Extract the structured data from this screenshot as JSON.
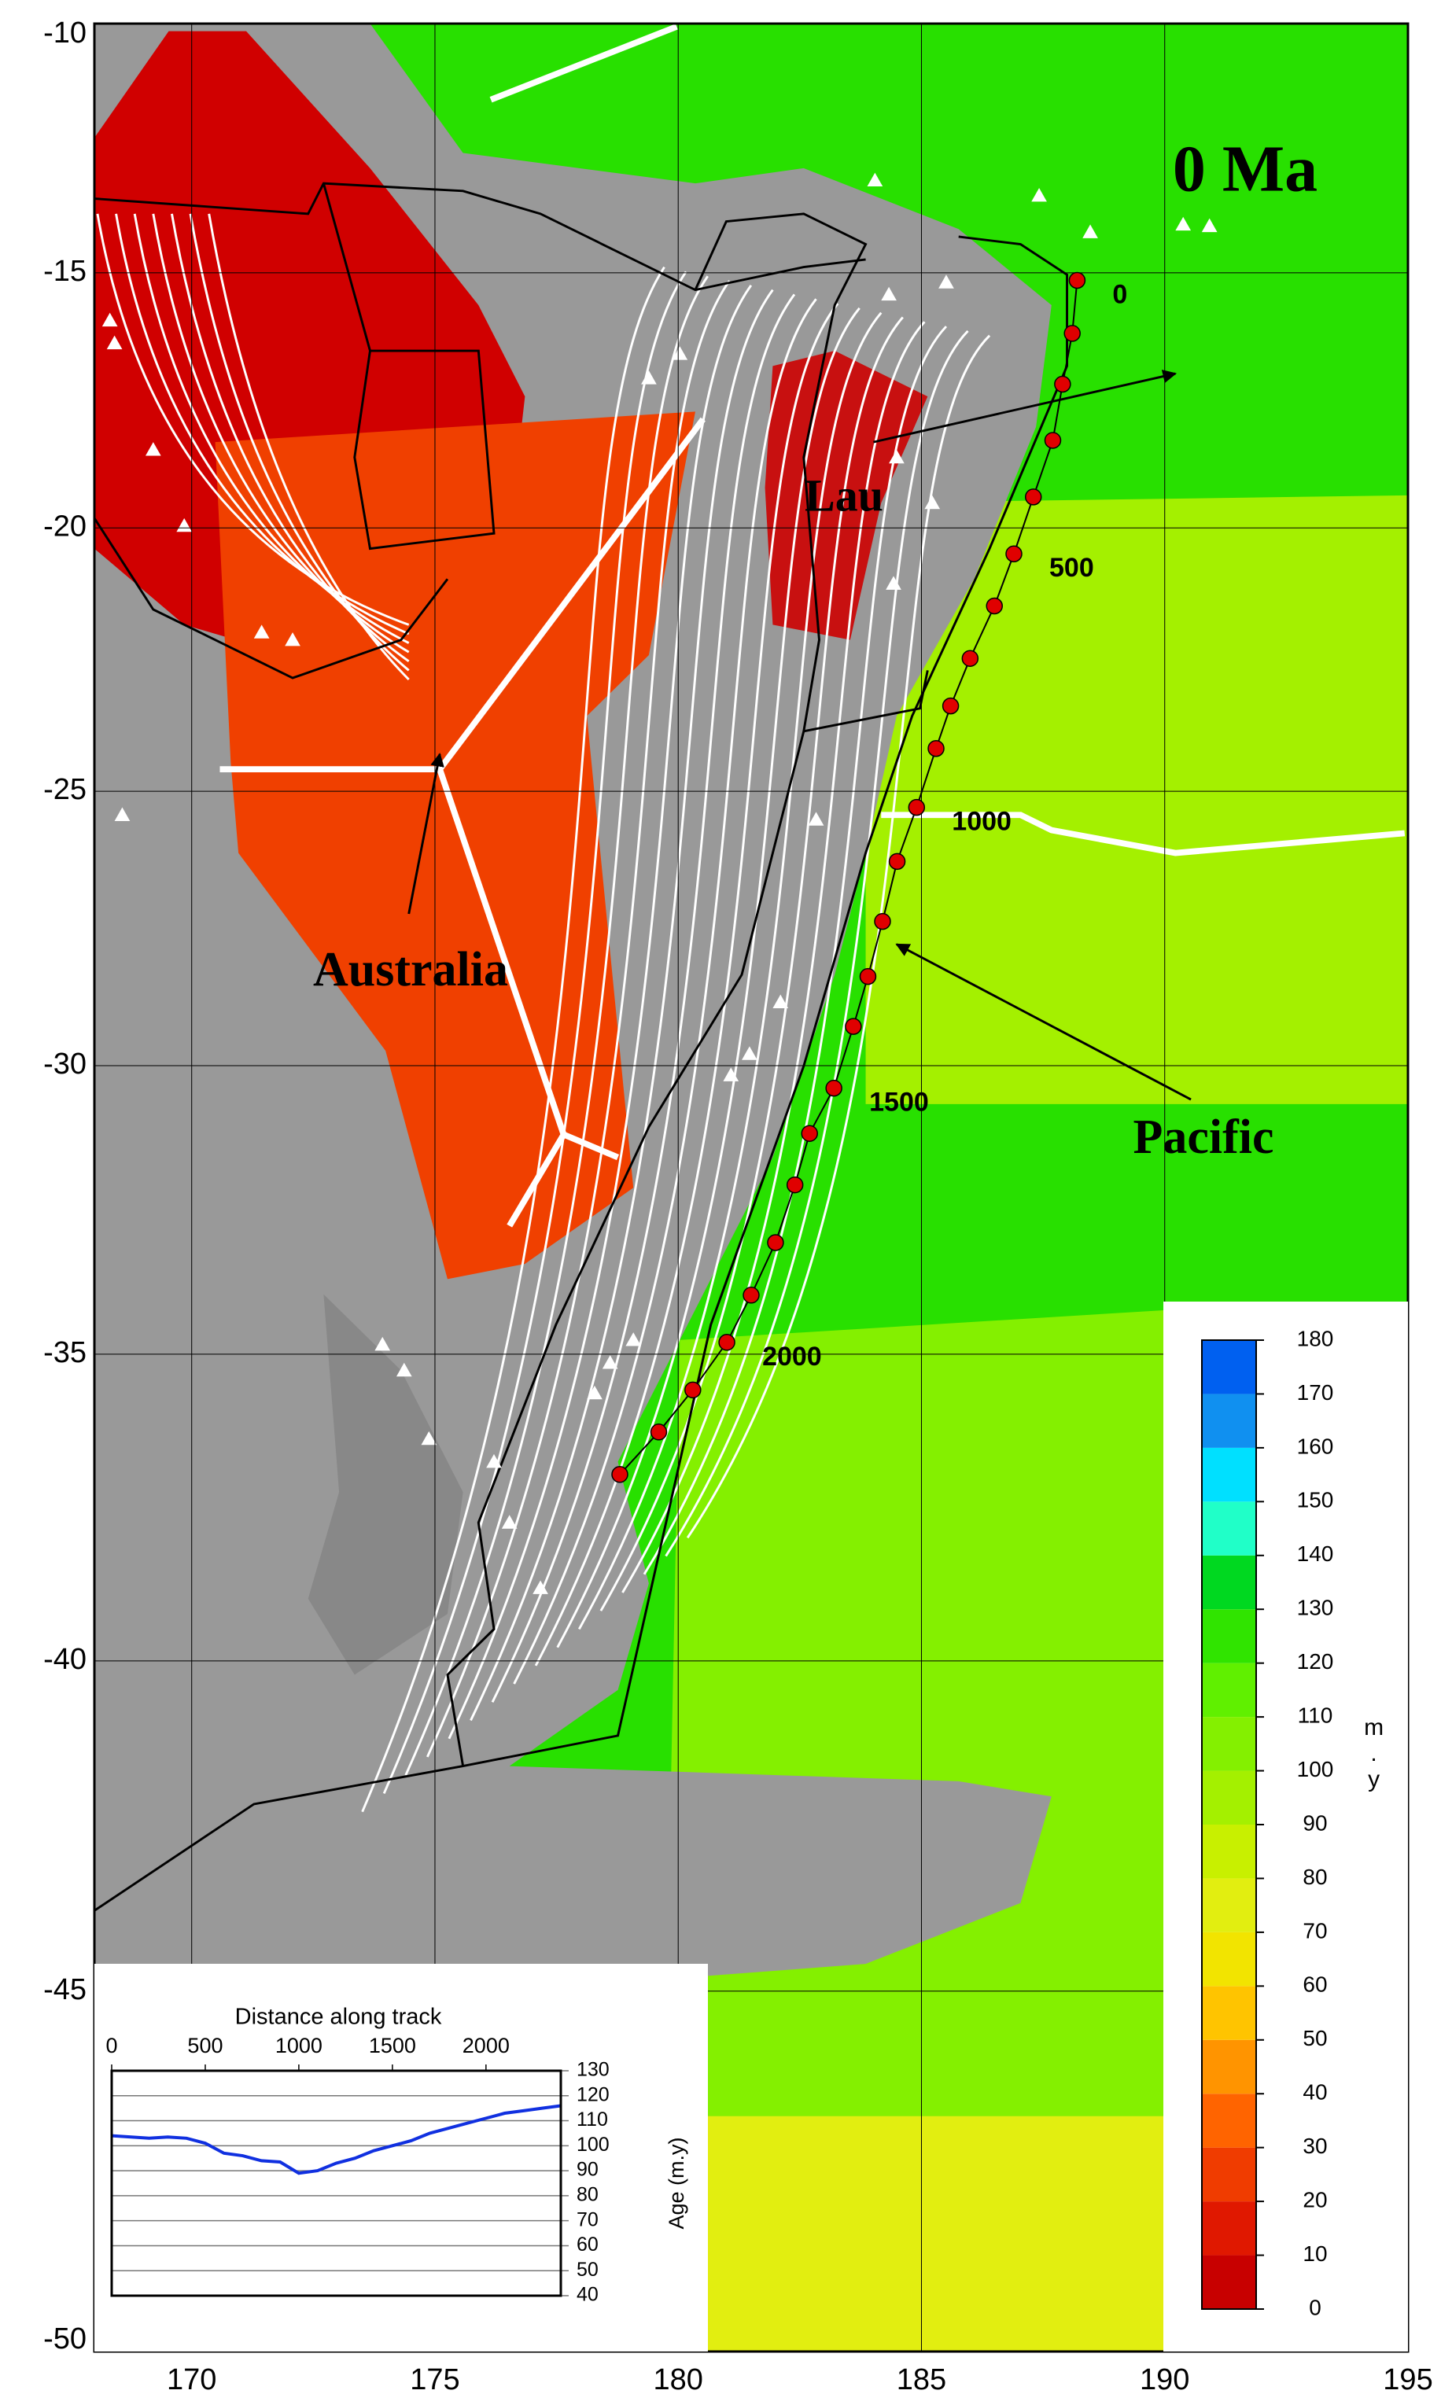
{
  "map": {
    "title": "0 Ma",
    "projection": "mercator",
    "xlim": [
      168,
      195
    ],
    "ylim": [
      -50,
      -10
    ],
    "xticks": [
      170,
      175,
      180,
      185,
      190,
      195
    ],
    "yticks": [
      -10,
      -15,
      -20,
      -25,
      -30,
      -35,
      -40,
      -45,
      -50
    ],
    "grid": true
  },
  "labels": [
    "Lau",
    "Australia",
    "Pacific"
  ],
  "track": {
    "color": "#e00000",
    "lon": [
      188.2,
      188.1,
      187.9,
      187.7,
      187.3,
      186.9,
      186.5,
      186.0,
      185.6,
      185.3,
      184.9,
      184.5,
      184.2,
      183.9,
      183.6,
      183.2,
      182.7,
      182.4,
      182.0,
      181.5,
      181.0,
      180.3,
      179.6,
      178.8
    ],
    "lat": [
      -15.15,
      -16.2,
      -17.2,
      -18.3,
      -19.4,
      -20.5,
      -21.5,
      -22.5,
      -23.4,
      -24.2,
      -25.3,
      -26.3,
      -27.4,
      -28.4,
      -29.3,
      -30.4,
      -31.2,
      -32.1,
      -33.1,
      -34.0,
      -34.8,
      -35.6,
      -36.3,
      -37.0
    ],
    "distance_labels": [
      0,
      500,
      1000,
      1500,
      2000
    ]
  },
  "colorbar": {
    "label": "m.y",
    "ticks": [
      0,
      10,
      20,
      30,
      40,
      50,
      60,
      70,
      80,
      90,
      100,
      110,
      120,
      130,
      140,
      150,
      160,
      170,
      180
    ],
    "colors": [
      "#c80000",
      "#e01800",
      "#f03c00",
      "#ff6400",
      "#ff9400",
      "#ffc400",
      "#f2e400",
      "#e2ee10",
      "#c8f000",
      "#a4f000",
      "#84f000",
      "#60f000",
      "#30e400",
      "#00d820",
      "#20ffc8",
      "#00e0ff",
      "#1090f0",
      "#0060f0"
    ]
  },
  "inset": {
    "type": "line",
    "title": "Distance along track",
    "ylabel": "Age (m.y)",
    "color": "#1030e0",
    "x": [
      0,
      200,
      300,
      400,
      500,
      600,
      700,
      800,
      900,
      1000,
      1100,
      1200,
      1300,
      1400,
      1500,
      1600,
      1700,
      1800,
      1900,
      2000,
      2100,
      2200,
      2300,
      2400
    ],
    "values": [
      104,
      103,
      103.5,
      103,
      101,
      97,
      96,
      94,
      93.5,
      89,
      90,
      93,
      95,
      98,
      100,
      102,
      105,
      107,
      109,
      111,
      113,
      114,
      115,
      116
    ],
    "xlim": [
      0,
      2400
    ],
    "ylim": [
      40,
      130
    ],
    "xticks": [
      0,
      500,
      1000,
      1500,
      2000
    ],
    "yticks": [
      40,
      50,
      60,
      70,
      80,
      90,
      100,
      110,
      120,
      130
    ]
  }
}
